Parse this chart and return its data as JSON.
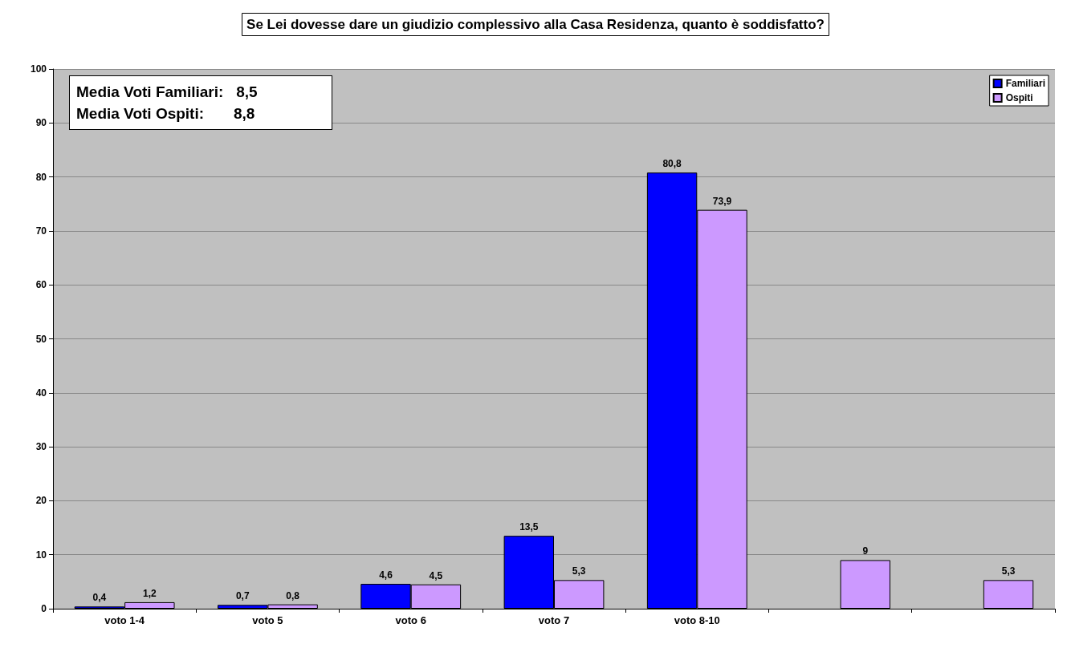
{
  "chart_data": {
    "type": "bar",
    "title": "Se Lei dovesse dare un giudizio complessivo alla Casa Residenza, quanto è soddisfatto?",
    "categories": [
      "voto 1-4",
      "voto 5",
      "voto 6",
      "voto 7",
      "voto 8-10",
      null,
      null
    ],
    "series": [
      {
        "name": "Familiari",
        "color": "#0000ff",
        "values": [
          0.4,
          0.7,
          4.6,
          13.5,
          80.8,
          null,
          null
        ],
        "value_labels": [
          "0,4",
          "0,7",
          "4,6",
          "13,5",
          "80,8",
          null,
          null
        ]
      },
      {
        "name": "Ospiti",
        "color": "#cc99ff",
        "values": [
          1.2,
          0.8,
          4.5,
          5.3,
          73.9,
          9,
          5.3
        ],
        "value_labels": [
          "1,2",
          "0,8",
          "4,5",
          "5,3",
          "73,9",
          "9",
          "5,3"
        ]
      }
    ],
    "annotations": [
      "Media Voti Familiari:   8,5",
      "Media Voti Ospiti:       8,8"
    ],
    "ylim": [
      0,
      100
    ],
    "yticks": [
      0,
      10,
      20,
      30,
      40,
      50,
      60,
      70,
      80,
      90,
      100
    ],
    "grid": "y",
    "legend": "top right"
  }
}
